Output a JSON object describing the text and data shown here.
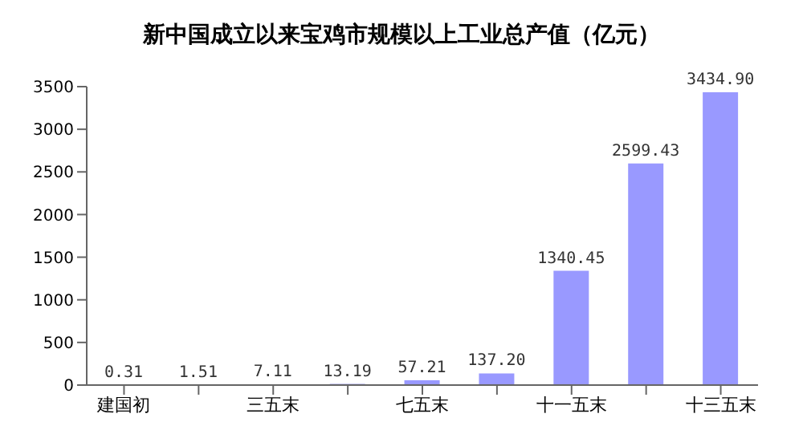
{
  "chart_data": {
    "type": "bar",
    "title": "新中国成立以来宝鸡市规模以上工业总产值（亿元）",
    "categories": [
      "建国初",
      null,
      "三五末",
      null,
      "七五末",
      null,
      "十一五末",
      null,
      "十三五末"
    ],
    "values": [
      0.31,
      1.51,
      7.11,
      13.19,
      57.21,
      137.2,
      1340.45,
      2599.43,
      3434.9
    ],
    "value_labels": [
      "0.31",
      "1.51",
      "7.11",
      "13.19",
      "57.21",
      "137.20",
      "1340.45",
      "2599.43",
      "3434.90"
    ],
    "color": "#9999ff",
    "ylim": [
      0,
      3500
    ],
    "yticks": [
      0,
      500,
      1000,
      1500,
      2000,
      2500,
      3000,
      3500
    ],
    "grid": false
  }
}
